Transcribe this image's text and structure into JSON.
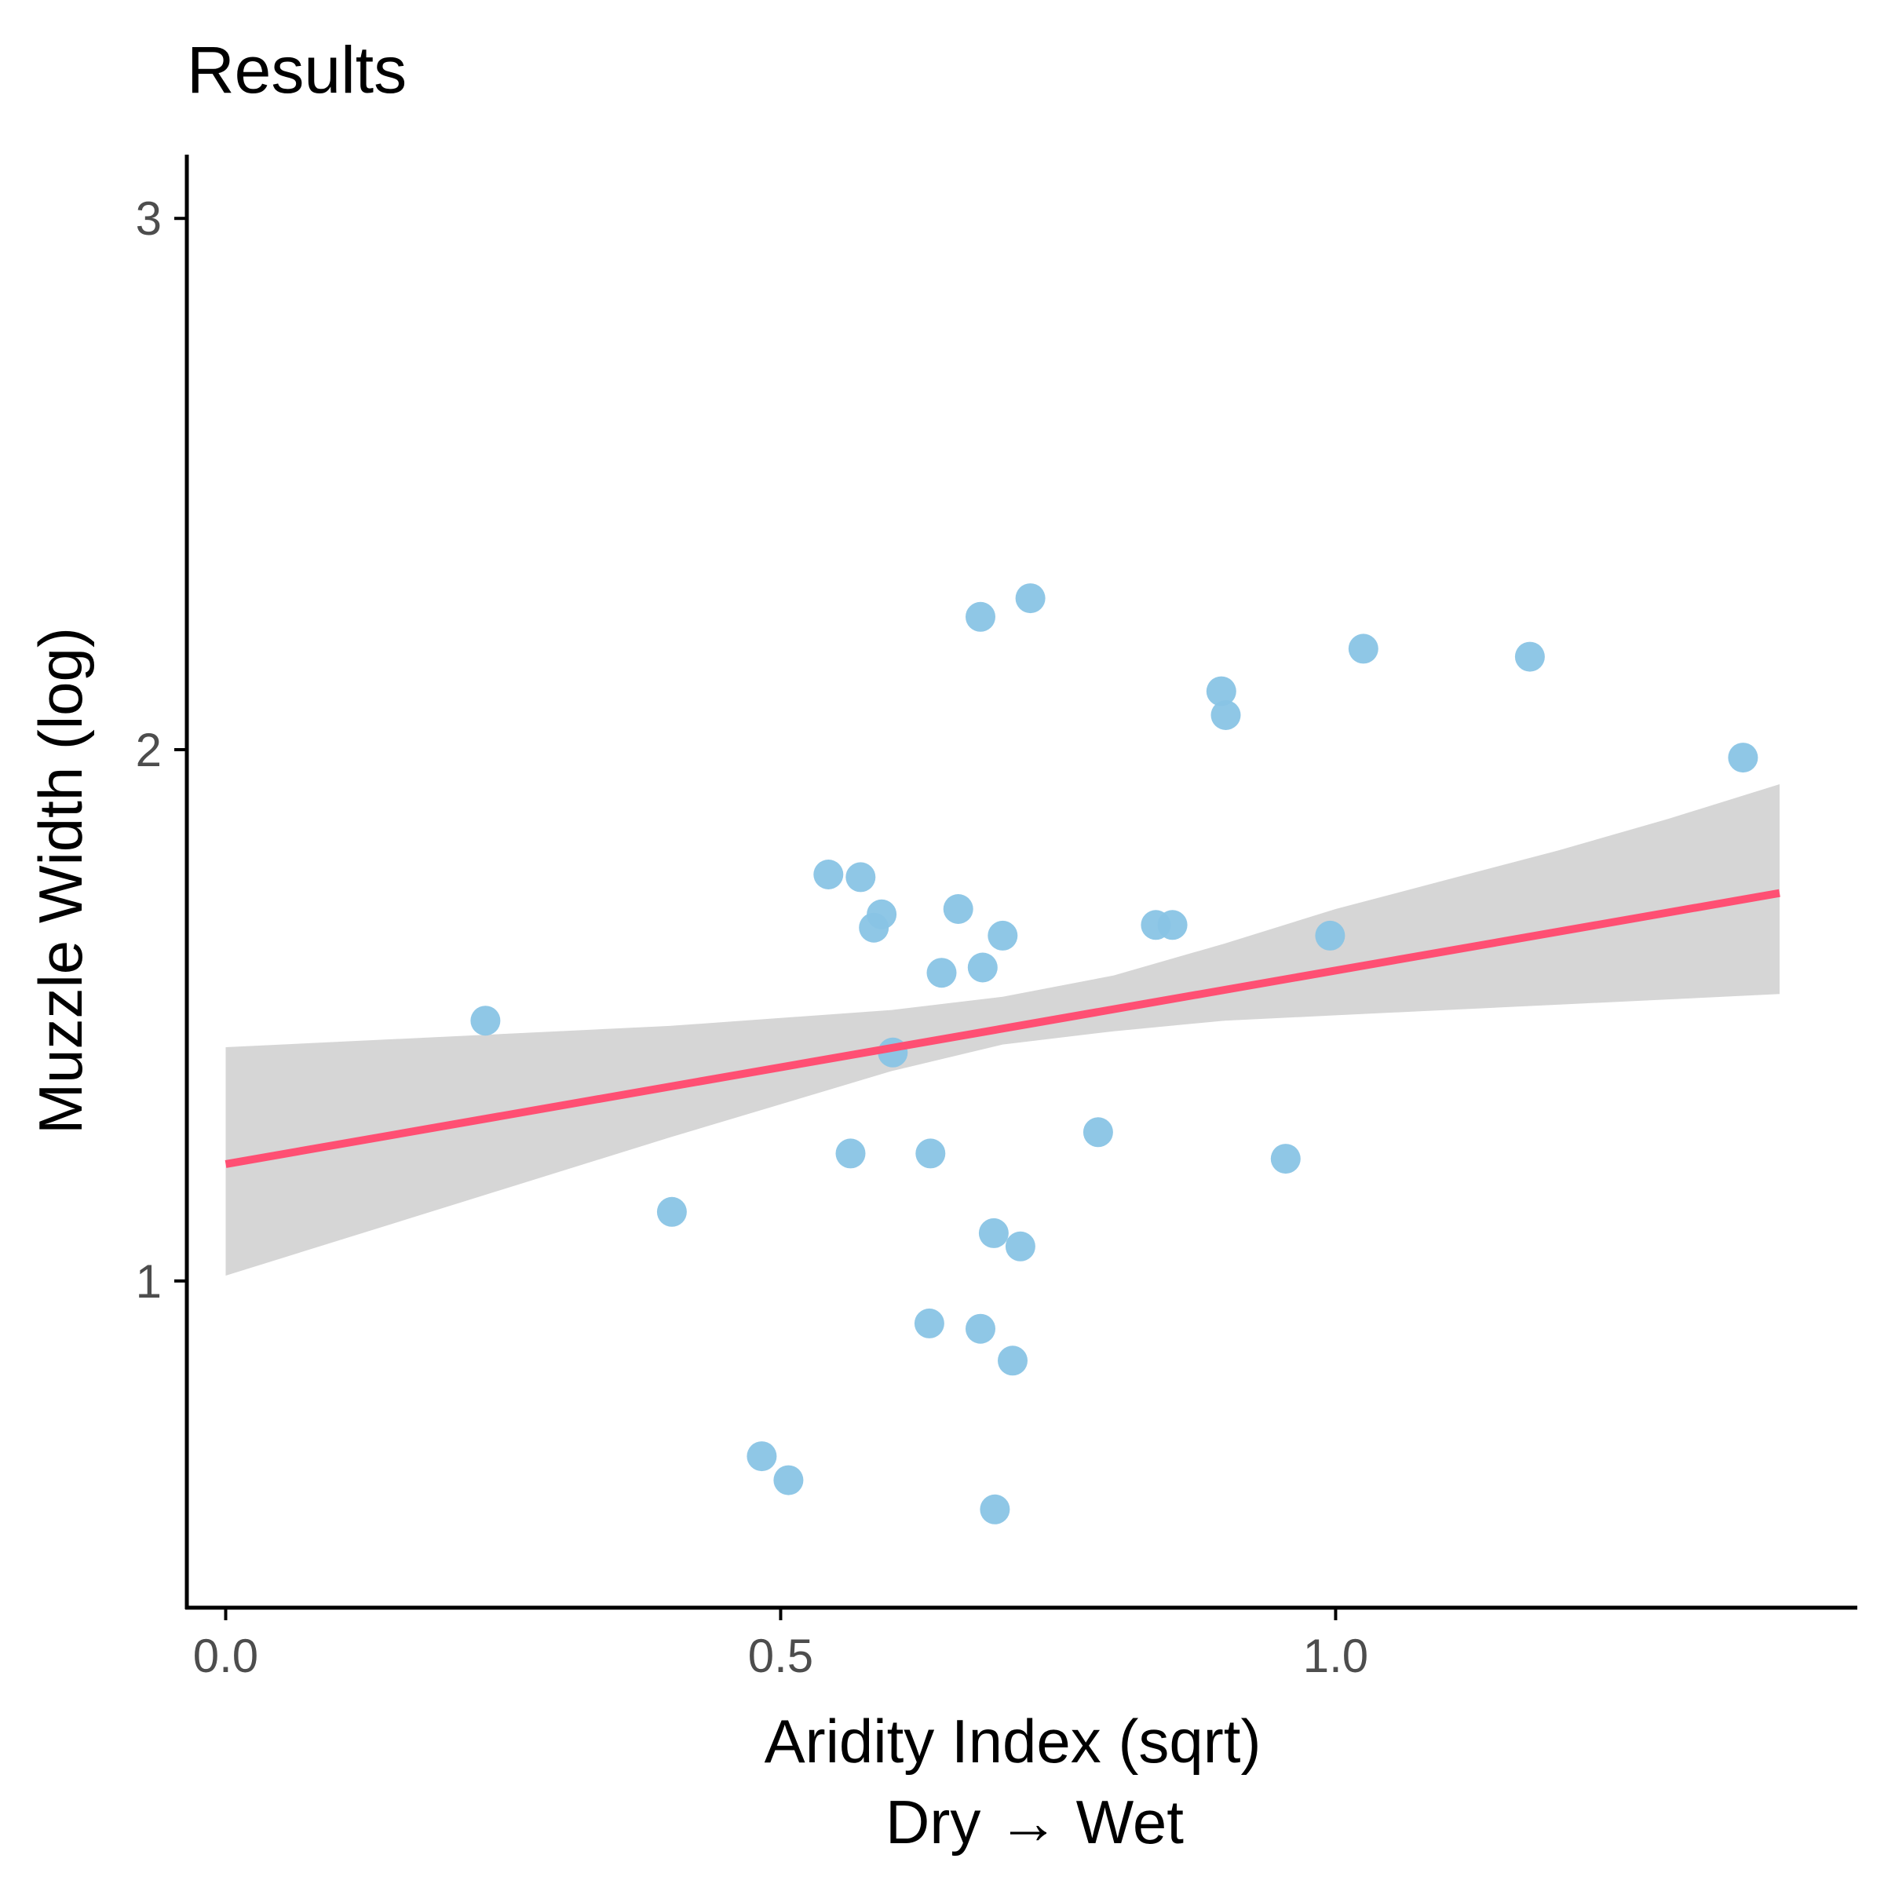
{
  "chart_data": {
    "type": "scatter",
    "title": "Results",
    "xlabel": "Aridity Index (sqrt)",
    "xlabel_line2": "Dry → Wet",
    "ylabel": "Muzzle Width (log)",
    "xlim": [
      -0.035,
      1.47
    ],
    "ylim": [
      0.385,
      3.12
    ],
    "x_ticks": [
      0.0,
      0.5,
      1.0
    ],
    "x_tick_labels": [
      "0.0",
      "0.5",
      "1.0"
    ],
    "y_ticks": [
      1,
      2,
      3
    ],
    "y_tick_labels": [
      "1",
      "2",
      "3"
    ],
    "grid": false,
    "legend": "none",
    "colors": {
      "points": "#89C4E5",
      "fit_line": "#FF4F73",
      "confidence_band": "#D6D6D6",
      "axis": "#000000",
      "tick_label": "#4d4d4d"
    },
    "points": [
      {
        "x": 0.234,
        "y": 1.49
      },
      {
        "x": 0.402,
        "y": 1.13
      },
      {
        "x": 0.483,
        "y": 0.67
      },
      {
        "x": 0.507,
        "y": 0.625
      },
      {
        "x": 0.543,
        "y": 1.765
      },
      {
        "x": 0.563,
        "y": 1.24
      },
      {
        "x": 0.572,
        "y": 1.76
      },
      {
        "x": 0.584,
        "y": 1.665
      },
      {
        "x": 0.591,
        "y": 1.69
      },
      {
        "x": 0.601,
        "y": 1.43
      },
      {
        "x": 0.634,
        "y": 0.92
      },
      {
        "x": 0.635,
        "y": 1.24
      },
      {
        "x": 0.645,
        "y": 1.58
      },
      {
        "x": 0.66,
        "y": 1.7
      },
      {
        "x": 0.68,
        "y": 2.25
      },
      {
        "x": 0.68,
        "y": 0.91
      },
      {
        "x": 0.682,
        "y": 1.59
      },
      {
        "x": 0.692,
        "y": 1.09
      },
      {
        "x": 0.693,
        "y": 0.57
      },
      {
        "x": 0.7,
        "y": 1.65
      },
      {
        "x": 0.709,
        "y": 0.85
      },
      {
        "x": 0.716,
        "y": 1.065
      },
      {
        "x": 0.725,
        "y": 2.285
      },
      {
        "x": 0.786,
        "y": 1.28
      },
      {
        "x": 0.838,
        "y": 1.67
      },
      {
        "x": 0.853,
        "y": 1.67
      },
      {
        "x": 0.897,
        "y": 2.11
      },
      {
        "x": 0.901,
        "y": 2.065
      },
      {
        "x": 0.955,
        "y": 1.23
      },
      {
        "x": 0.995,
        "y": 1.65
      },
      {
        "x": 1.025,
        "y": 2.19
      },
      {
        "x": 1.175,
        "y": 2.175
      },
      {
        "x": 1.367,
        "y": 1.985
      }
    ],
    "fit": {
      "x": [
        0.0,
        1.4
      ],
      "y": [
        1.22,
        1.73
      ]
    },
    "confidence_band": {
      "x": [
        0.0,
        0.2,
        0.4,
        0.6,
        0.7,
        0.8,
        0.9,
        1.0,
        1.1,
        1.2,
        1.3,
        1.4
      ],
      "upper": [
        1.44,
        1.46,
        1.48,
        1.51,
        1.535,
        1.575,
        1.635,
        1.7,
        1.755,
        1.81,
        1.87,
        1.935
      ],
      "lower": [
        1.01,
        1.14,
        1.27,
        1.395,
        1.445,
        1.47,
        1.49,
        1.5,
        1.51,
        1.52,
        1.53,
        1.54
      ]
    }
  }
}
